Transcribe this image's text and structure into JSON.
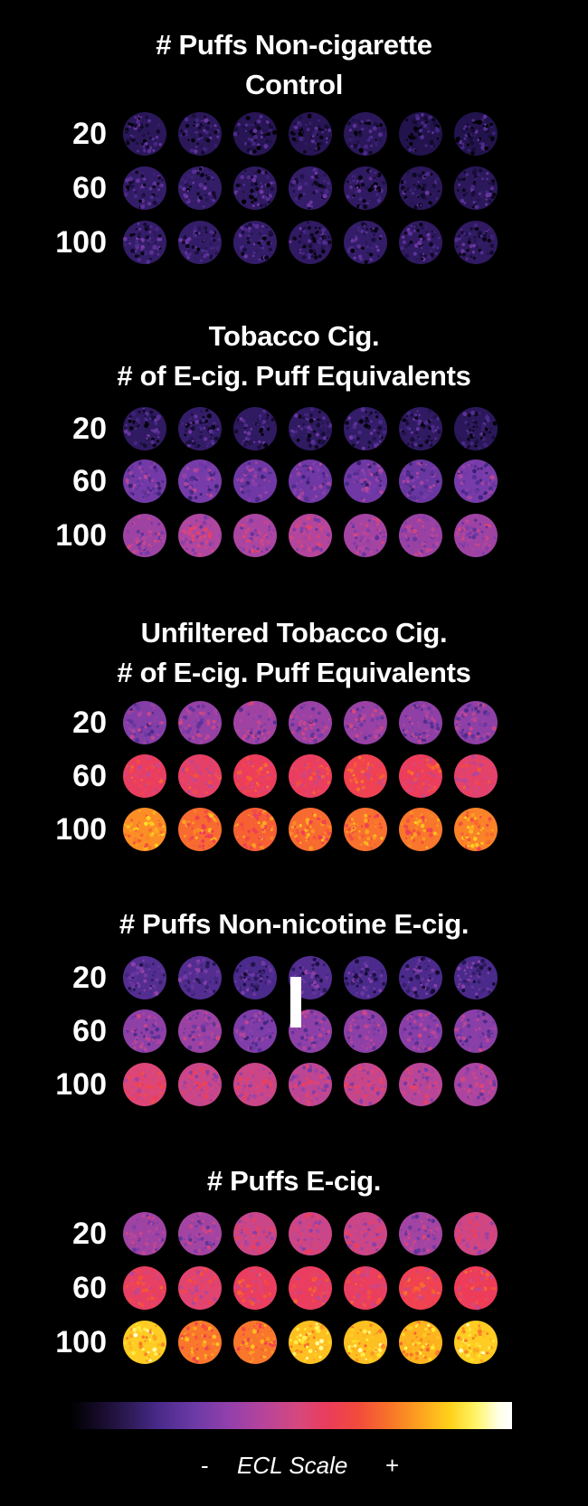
{
  "panels": [
    {
      "title_lines": [
        "# Puffs Non-cigarette",
        "Control"
      ],
      "rows": [
        {
          "label": "20",
          "intensity": [
            0.13,
            0.13,
            0.12,
            0.12,
            0.13,
            0.11,
            0.11
          ]
        },
        {
          "label": "60",
          "intensity": [
            0.15,
            0.15,
            0.14,
            0.15,
            0.14,
            0.13,
            0.13
          ]
        },
        {
          "label": "100",
          "intensity": [
            0.15,
            0.15,
            0.15,
            0.14,
            0.15,
            0.14,
            0.14
          ]
        }
      ]
    },
    {
      "title_lines": [
        "Tobacco Cig.",
        "# of E-cig. Puff Equivalents"
      ],
      "rows": [
        {
          "label": "20",
          "intensity": [
            0.14,
            0.15,
            0.14,
            0.14,
            0.15,
            0.14,
            0.13
          ]
        },
        {
          "label": "60",
          "intensity": [
            0.29,
            0.3,
            0.28,
            0.28,
            0.28,
            0.27,
            0.3
          ]
        },
        {
          "label": "100",
          "intensity": [
            0.37,
            0.4,
            0.39,
            0.41,
            0.38,
            0.36,
            0.37
          ]
        }
      ]
    },
    {
      "title_lines": [
        "Unfiltered Tobacco Cig.",
        "# of E-cig. Puff Equivalents"
      ],
      "rows": [
        {
          "label": "20",
          "intensity": [
            0.32,
            0.35,
            0.37,
            0.36,
            0.36,
            0.34,
            0.34
          ]
        },
        {
          "label": "60",
          "intensity": [
            0.56,
            0.54,
            0.57,
            0.56,
            0.6,
            0.57,
            0.53
          ]
        },
        {
          "label": "100",
          "intensity": [
            0.76,
            0.7,
            0.68,
            0.7,
            0.71,
            0.72,
            0.74
          ]
        }
      ]
    },
    {
      "title_lines": [
        "# Puffs Non-nicotine E-cig."
      ],
      "rows": [
        {
          "label": "20",
          "intensity": [
            0.22,
            0.22,
            0.2,
            0.22,
            0.2,
            0.2,
            0.2
          ]
        },
        {
          "label": "60",
          "intensity": [
            0.34,
            0.36,
            0.31,
            0.34,
            0.34,
            0.33,
            0.33
          ]
        },
        {
          "label": "100",
          "intensity": [
            0.5,
            0.46,
            0.46,
            0.43,
            0.45,
            0.42,
            0.39
          ]
        }
      ]
    },
    {
      "title_lines": [
        "# Puffs E-cig."
      ],
      "rows": [
        {
          "label": "20",
          "intensity": [
            0.37,
            0.38,
            0.46,
            0.46,
            0.46,
            0.38,
            0.47
          ]
        },
        {
          "label": "60",
          "intensity": [
            0.55,
            0.52,
            0.56,
            0.56,
            0.56,
            0.6,
            0.58
          ]
        },
        {
          "label": "100",
          "intensity": [
            0.86,
            0.72,
            0.72,
            0.84,
            0.84,
            0.82,
            0.86
          ]
        }
      ]
    }
  ],
  "scale": {
    "title": "ECL Scale",
    "min_label": "-",
    "max_label": "+"
  }
}
